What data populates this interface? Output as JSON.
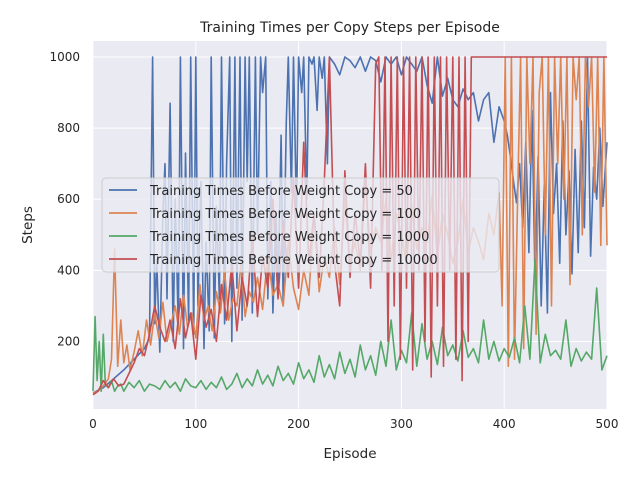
{
  "chart_data": {
    "type": "line",
    "title": "Training Times per Copy Steps per Episode",
    "xlabel": "Episode",
    "ylabel": "Steps",
    "xlim": [
      0,
      500
    ],
    "ylim": [
      10,
      1045
    ],
    "xticks": [
      0,
      100,
      200,
      300,
      400,
      500
    ],
    "yticks": [
      200,
      400,
      600,
      800,
      1000
    ],
    "grid": true,
    "legend_position": "center-left",
    "background": "#eaeaf2",
    "series": [
      {
        "name": "Training Times Before Weight Copy = 50",
        "color": "#4c72b0",
        "x": [
          0,
          10,
          20,
          30,
          40,
          50,
          55,
          58,
          60,
          62,
          65,
          68,
          70,
          72,
          75,
          78,
          80,
          83,
          85,
          88,
          90,
          93,
          95,
          98,
          100,
          102,
          105,
          108,
          110,
          113,
          115,
          118,
          120,
          123,
          125,
          128,
          130,
          133,
          135,
          138,
          140,
          143,
          145,
          148,
          150,
          152,
          155,
          158,
          160,
          163,
          165,
          168,
          170,
          173,
          175,
          178,
          180,
          183,
          185,
          188,
          190,
          193,
          195,
          198,
          200,
          203,
          205,
          208,
          210,
          213,
          215,
          218,
          220,
          223,
          225,
          228,
          230,
          235,
          240,
          245,
          250,
          255,
          260,
          265,
          270,
          275,
          280,
          285,
          290,
          295,
          300,
          305,
          310,
          315,
          320,
          325,
          330,
          335,
          340,
          345,
          350,
          355,
          360,
          365,
          370,
          375,
          380,
          385,
          390,
          395,
          400,
          403,
          406,
          409,
          412,
          415,
          418,
          421,
          424,
          427,
          430,
          433,
          436,
          439,
          442,
          445,
          448,
          451,
          454,
          457,
          460,
          463,
          466,
          469,
          472,
          475,
          478,
          481,
          484,
          487,
          490,
          493,
          496,
          500
        ],
        "values": [
          55,
          70,
          95,
          120,
          150,
          180,
          210,
          1000,
          250,
          430,
          170,
          560,
          700,
          320,
          870,
          200,
          600,
          240,
          1000,
          180,
          730,
          260,
          1000,
          220,
          1000,
          300,
          650,
          180,
          480,
          230,
          1000,
          210,
          580,
          320,
          1000,
          250,
          700,
          1000,
          200,
          1000,
          350,
          1000,
          260,
          1000,
          650,
          1000,
          280,
          1000,
          500,
          1000,
          900,
          1000,
          320,
          650,
          280,
          560,
          330,
          780,
          300,
          820,
          1000,
          620,
          1000,
          550,
          1000,
          900,
          1000,
          600,
          1000,
          980,
          1000,
          850,
          1000,
          940,
          1000,
          700,
          1000,
          980,
          950,
          1000,
          990,
          970,
          1000,
          960,
          1000,
          990,
          930,
          1000,
          980,
          1000,
          950,
          1000,
          980,
          960,
          1000,
          920,
          870,
          1000,
          890,
          940,
          880,
          860,
          910,
          880,
          900,
          820,
          880,
          900,
          760,
          860,
          820,
          780,
          720,
          650,
          590,
          700,
          520,
          760,
          450,
          850,
          380,
          720,
          300,
          640,
          280,
          900,
          560,
          700,
          420,
          820,
          500,
          680,
          390,
          740,
          450,
          820,
          520,
          1000,
          440,
          690,
          600,
          800,
          580,
          760
        ]
      },
      {
        "name": "Training Times Before Weight Copy = 100",
        "color": "#dd8452",
        "x": [
          0,
          5,
          10,
          15,
          18,
          21,
          24,
          27,
          30,
          33,
          36,
          40,
          44,
          48,
          52,
          56,
          60,
          64,
          68,
          72,
          76,
          80,
          84,
          88,
          92,
          96,
          100,
          104,
          108,
          112,
          116,
          120,
          124,
          128,
          132,
          136,
          140,
          144,
          148,
          152,
          156,
          160,
          165,
          170,
          175,
          180,
          185,
          190,
          195,
          200,
          205,
          210,
          215,
          220,
          225,
          230,
          235,
          240,
          245,
          250,
          255,
          260,
          265,
          270,
          275,
          280,
          285,
          290,
          295,
          300,
          305,
          310,
          315,
          320,
          325,
          330,
          335,
          340,
          345,
          350,
          355,
          360,
          365,
          370,
          375,
          380,
          385,
          390,
          395,
          398,
          401,
          404,
          407,
          410,
          413,
          416,
          419,
          422,
          425,
          428,
          431,
          434,
          437,
          440,
          443,
          446,
          449,
          452,
          455,
          458,
          461,
          464,
          467,
          470,
          473,
          476,
          479,
          482,
          485,
          488,
          491,
          494,
          497,
          500
        ],
        "values": [
          55,
          60,
          75,
          95,
          150,
          460,
          130,
          260,
          140,
          190,
          120,
          170,
          230,
          160,
          260,
          190,
          280,
          210,
          310,
          200,
          250,
          300,
          220,
          330,
          240,
          280,
          210,
          360,
          260,
          300,
          230,
          340,
          280,
          400,
          260,
          320,
          300,
          420,
          270,
          340,
          310,
          380,
          290,
          440,
          330,
          360,
          300,
          480,
          350,
          290,
          400,
          330,
          560,
          340,
          440,
          380,
          520,
          360,
          600,
          420,
          480,
          400,
          650,
          450,
          520,
          480,
          600,
          430,
          560,
          500,
          420,
          580,
          460,
          520,
          480,
          610,
          440,
          560,
          500,
          420,
          480,
          600,
          450,
          520,
          480,
          430,
          560,
          500,
          620,
          300,
          1000,
          130,
          1000,
          150,
          600,
          1000,
          180,
          1000,
          700,
          1000,
          220,
          900,
          1000,
          500,
          1000,
          300,
          1000,
          700,
          1000,
          600,
          1000,
          360,
          1000,
          880,
          1000,
          500,
          1000,
          860,
          1000,
          620,
          1000,
          470,
          1000,
          470
        ]
      },
      {
        "name": "Training Times Before Weight Copy = 1000",
        "color": "#55a868",
        "x": [
          0,
          2,
          4,
          6,
          8,
          10,
          12,
          15,
          18,
          21,
          24,
          27,
          30,
          35,
          40,
          45,
          50,
          55,
          60,
          65,
          70,
          75,
          80,
          85,
          90,
          95,
          100,
          105,
          110,
          115,
          120,
          125,
          130,
          135,
          140,
          145,
          150,
          155,
          160,
          165,
          170,
          175,
          180,
          185,
          190,
          195,
          200,
          205,
          210,
          215,
          220,
          225,
          230,
          235,
          240,
          245,
          250,
          255,
          260,
          265,
          270,
          275,
          280,
          285,
          290,
          295,
          300,
          305,
          310,
          315,
          320,
          325,
          330,
          335,
          340,
          345,
          350,
          355,
          360,
          365,
          370,
          375,
          380,
          385,
          390,
          395,
          400,
          405,
          410,
          415,
          420,
          425,
          430,
          435,
          440,
          445,
          450,
          455,
          460,
          465,
          470,
          475,
          480,
          485,
          490,
          495,
          500
        ],
        "values": [
          60,
          270,
          90,
          200,
          60,
          220,
          80,
          70,
          90,
          60,
          75,
          80,
          60,
          85,
          70,
          90,
          60,
          80,
          75,
          65,
          90,
          70,
          85,
          60,
          95,
          75,
          70,
          90,
          65,
          85,
          70,
          100,
          65,
          80,
          110,
          70,
          95,
          75,
          120,
          80,
          105,
          75,
          130,
          90,
          110,
          80,
          140,
          95,
          120,
          85,
          160,
          100,
          135,
          95,
          170,
          110,
          150,
          100,
          190,
          120,
          160,
          105,
          200,
          130,
          260,
          120,
          175,
          140,
          280,
          130,
          250,
          150,
          200,
          135,
          240,
          160,
          190,
          145,
          230,
          155,
          180,
          140,
          260,
          150,
          200,
          145,
          180,
          155,
          210,
          140,
          300,
          150,
          430,
          140,
          220,
          160,
          175,
          150,
          260,
          130,
          180,
          145,
          170,
          150,
          350,
          120,
          160
        ]
      },
      {
        "name": "Training Times Before Weight Copy = 10000",
        "color": "#c44e52",
        "x": [
          0,
          5,
          10,
          15,
          20,
          25,
          30,
          35,
          40,
          45,
          50,
          55,
          60,
          65,
          70,
          75,
          80,
          85,
          90,
          95,
          100,
          105,
          110,
          115,
          120,
          125,
          130,
          135,
          140,
          145,
          150,
          155,
          160,
          165,
          170,
          175,
          180,
          185,
          190,
          195,
          200,
          205,
          210,
          215,
          220,
          225,
          230,
          235,
          240,
          245,
          250,
          255,
          260,
          265,
          270,
          275,
          278,
          281,
          284,
          287,
          290,
          293,
          296,
          299,
          302,
          305,
          308,
          311,
          314,
          317,
          320,
          323,
          326,
          329,
          332,
          335,
          338,
          341,
          344,
          347,
          350,
          353,
          356,
          359,
          362,
          365,
          368,
          372,
          376,
          380,
          390,
          400,
          410,
          420,
          430,
          440,
          450,
          460,
          470,
          480,
          490,
          500
        ],
        "values": [
          50,
          60,
          90,
          70,
          95,
          75,
          80,
          110,
          140,
          180,
          160,
          220,
          300,
          240,
          200,
          260,
          180,
          320,
          210,
          280,
          150,
          330,
          240,
          290,
          200,
          360,
          260,
          420,
          230,
          380,
          300,
          500,
          270,
          440,
          350,
          600,
          320,
          540,
          380,
          660,
          350,
          760,
          420,
          560,
          380,
          650,
          1000,
          420,
          300,
          680,
          380,
          560,
          420,
          700,
          350,
          980,
          1000,
          400,
          1000,
          200,
          1000,
          300,
          1000,
          150,
          1000,
          350,
          1000,
          120,
          1000,
          400,
          1000,
          200,
          1000,
          100,
          1000,
          300,
          1000,
          130,
          1000,
          400,
          1000,
          150,
          1000,
          90,
          1000,
          200,
          1000,
          1000,
          1000,
          1000,
          1000,
          1000,
          1000,
          1000,
          1000,
          1000,
          1000,
          1000,
          1000,
          1000,
          1000,
          1000
        ]
      }
    ]
  }
}
